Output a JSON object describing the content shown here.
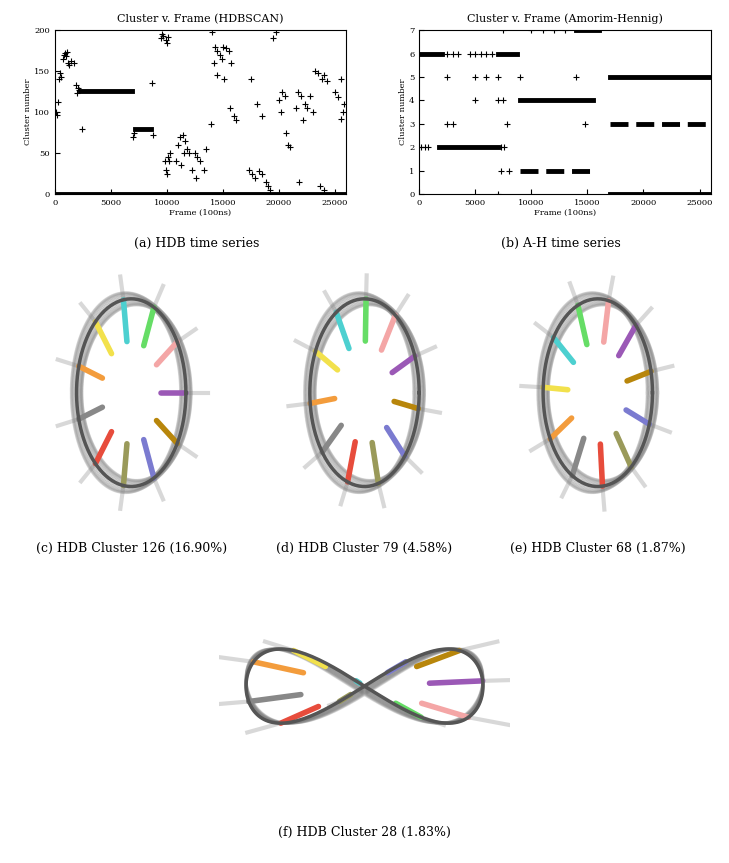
{
  "chart_data": [
    {
      "type": "scatter",
      "title": "Cluster v. Frame (HDBSCAN)",
      "x_label": "Frame (100ns)",
      "y_label": "Cluster number",
      "xlim": [
        0,
        26000
      ],
      "xticks": [
        0,
        5000,
        10000,
        15000,
        20000,
        25000
      ],
      "ylim": [
        0,
        200
      ],
      "yticks": [
        0,
        50,
        100,
        150,
        200
      ],
      "color": "#000000",
      "marker": "plus",
      "series": [
        {
          "type": "line",
          "line_style": "solid",
          "x": [
            0,
            26000
          ],
          "values": [
            0,
            0
          ]
        },
        {
          "type": "line",
          "line_style": "solid",
          "x": [
            2300,
            6900
          ],
          "values": [
            126,
            126
          ]
        },
        {
          "type": "line",
          "line_style": "solid",
          "x": [
            7200,
            8600
          ],
          "values": [
            79,
            79
          ]
        },
        {
          "type": "scatter",
          "marker": "plus",
          "x": [
            100,
            200,
            300,
            400,
            500,
            600,
            700,
            800,
            900,
            1000,
            1100,
            1200,
            1300,
            1500,
            1700,
            1900,
            2000,
            2100,
            2200,
            2400,
            7000,
            7100,
            8800,
            8700,
            9500,
            9600,
            9700,
            9900,
            10000,
            10100,
            9800,
            9900,
            10000,
            10100,
            10200,
            10300,
            11000,
            11200,
            11400,
            11600,
            11800,
            12000,
            11500,
            11300,
            10800,
            12500,
            12700,
            13000,
            13300,
            13500,
            12200,
            12600,
            14000,
            14300,
            14500,
            14700,
            14900,
            14200,
            14500,
            13900,
            15000,
            15300,
            15500,
            15700,
            15100,
            16000,
            16200,
            15600,
            17300,
            17600,
            17900,
            18200,
            18500,
            18800,
            19000,
            17500,
            18000,
            18500,
            19200,
            19500,
            19700,
            20000,
            20300,
            20500,
            20800,
            21000,
            20200,
            20600,
            21500,
            21700,
            22000,
            22300,
            22500,
            22800,
            23000,
            22100,
            21800,
            23200,
            23500,
            23800,
            24000,
            24300,
            24000,
            23700,
            25000,
            25300,
            25500,
            25700,
            25800,
            25500
          ],
          "values": [
            100,
            97,
            113,
            140,
            148,
            143,
            165,
            170,
            172,
            168,
            174,
            160,
            157,
            162,
            160,
            133,
            124,
            130,
            127,
            80,
            70,
            75,
            72,
            135,
            190,
            195,
            193,
            188,
            185,
            192,
            40,
            30,
            25,
            45,
            40,
            50,
            60,
            70,
            72,
            65,
            55,
            50,
            50,
            35,
            40,
            50,
            45,
            40,
            30,
            55,
            30,
            20,
            198,
            180,
            175,
            170,
            165,
            160,
            145,
            85,
            180,
            178,
            175,
            160,
            140,
            95,
            90,
            105,
            30,
            25,
            20,
            28,
            25,
            15,
            10,
            140,
            110,
            95,
            5,
            190,
            198,
            115,
            125,
            120,
            60,
            58,
            100,
            75,
            105,
            125,
            120,
            110,
            105,
            120,
            100,
            90,
            15,
            150,
            148,
            140,
            145,
            138,
            5,
            10,
            125,
            118,
            140,
            100,
            110,
            92
          ]
        }
      ]
    },
    {
      "type": "scatter",
      "title": "Cluster v. Frame (Amorim-Hennig)",
      "x_label": "Frame (100ns)",
      "y_label": "Cluster number",
      "xlim": [
        0,
        26000
      ],
      "xticks": [
        0,
        5000,
        10000,
        15000,
        20000,
        25000
      ],
      "ylim": [
        0,
        7
      ],
      "yticks": [
        0,
        1,
        2,
        3,
        4,
        5,
        6,
        7
      ],
      "color": "#000000",
      "marker": "plus",
      "series": [
        {
          "type": "line",
          "line_style": "solid",
          "x": [
            0,
            2000
          ],
          "values": [
            6,
            6
          ]
        },
        {
          "type": "line",
          "line_style": "solid",
          "x": [
            7000,
            8700
          ],
          "values": [
            6,
            6
          ]
        },
        {
          "type": "line",
          "line_style": "solid",
          "x": [
            1800,
            7000
          ],
          "values": [
            2,
            2
          ]
        },
        {
          "type": "line",
          "line_style": "solid",
          "x": [
            9000,
            15500
          ],
          "values": [
            4,
            4
          ]
        },
        {
          "type": "line",
          "line_style": "dashed",
          "x": [
            9000,
            15500
          ],
          "values": [
            1,
            1
          ]
        },
        {
          "type": "line",
          "line_style": "solid",
          "x": [
            14000,
            16000
          ],
          "values": [
            7,
            7
          ]
        },
        {
          "type": "line",
          "line_style": "solid",
          "x": [
            17000,
            26000
          ],
          "values": [
            5,
            5
          ]
        },
        {
          "type": "line",
          "line_style": "dashed",
          "x": [
            17000,
            26000
          ],
          "values": [
            3,
            3
          ]
        },
        {
          "type": "line",
          "line_style": "solid",
          "x": [
            17000,
            26000
          ],
          "values": [
            0,
            0
          ]
        },
        {
          "type": "scatter",
          "marker": "plus",
          "x": [
            2500,
            3000,
            3500,
            4500,
            5000,
            5500,
            6000,
            6500,
            200,
            500,
            800,
            7300,
            7600,
            2500,
            3000,
            7800,
            14800,
            2500,
            5000,
            6000,
            7000,
            9000,
            14000,
            5000,
            7000,
            7500,
            7500,
            10000,
            11000,
            12000,
            13000,
            7300,
            8000,
            7000
          ],
          "values": [
            6,
            6,
            6,
            6,
            6,
            6,
            6,
            6,
            2,
            2,
            2,
            2,
            2,
            3,
            3,
            3,
            3,
            5,
            5,
            5,
            5,
            5,
            5,
            4,
            4,
            4,
            7,
            7,
            7,
            7,
            7,
            1,
            1,
            0
          ]
        }
      ]
    }
  ],
  "figure": {
    "captions": [
      "(a) HDB time series",
      "(b) A-H time series",
      "(c) HDB Cluster 126 (16.90%)",
      "(d) HDB Cluster 79 (4.58%)",
      "(e) HDB Cluster 68 (1.87%)",
      "(f) HDB Cluster 28 (1.83%)"
    ]
  }
}
